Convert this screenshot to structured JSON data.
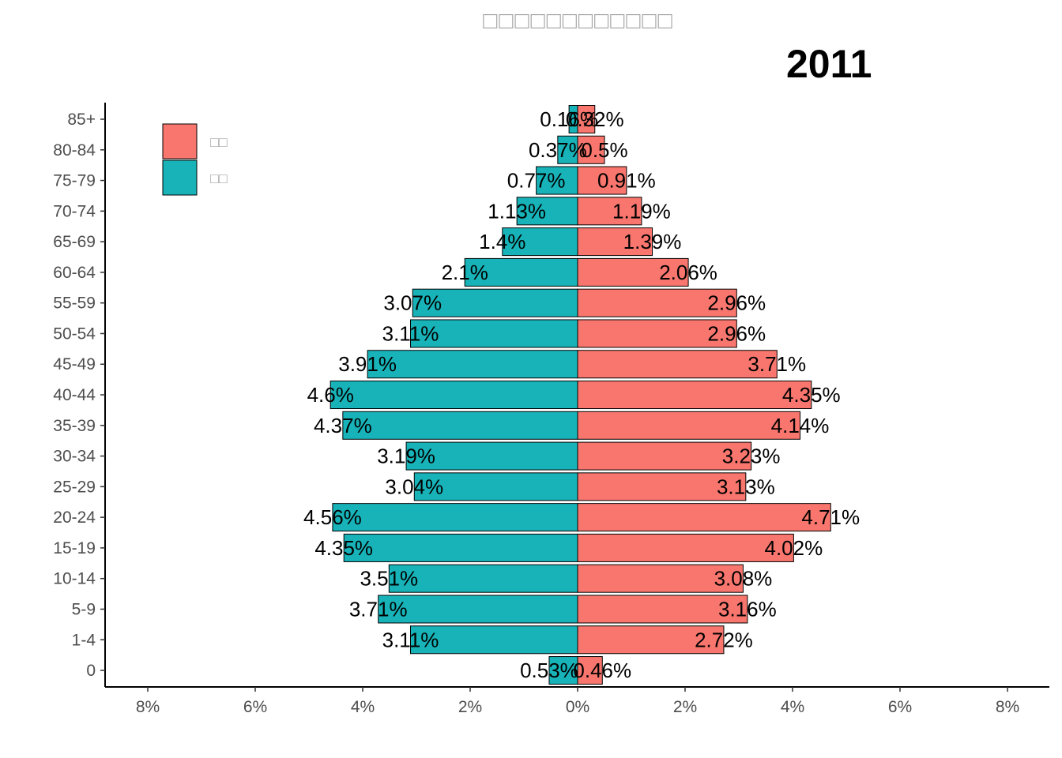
{
  "title": "□□□□□□□□□□□□",
  "year": "2011",
  "colors": {
    "female": "#F8766D",
    "male": "#17B3B8",
    "axis": "#000000",
    "tick_text": "#4d4d4d"
  },
  "chart_data": {
    "type": "bar",
    "orientation": "horizontal",
    "layout": "population-pyramid",
    "categories": [
      "85+",
      "80-84",
      "75-79",
      "70-74",
      "65-69",
      "60-64",
      "55-59",
      "50-54",
      "45-49",
      "40-44",
      "35-39",
      "30-34",
      "25-29",
      "20-24",
      "15-19",
      "10-14",
      "5-9",
      "1-4",
      "0"
    ],
    "series": [
      {
        "name": "□□",
        "side": "right",
        "color": "#F8766D",
        "values": [
          0.32,
          0.5,
          0.91,
          1.19,
          1.39,
          2.06,
          2.96,
          2.96,
          3.71,
          4.35,
          4.14,
          3.23,
          3.13,
          4.71,
          4.02,
          3.08,
          3.16,
          2.72,
          0.46
        ],
        "labels": [
          "0.32%",
          "0.5%",
          "0.91%",
          "1.19%",
          "1.39%",
          "2.06%",
          "2.96%",
          "2.96%",
          "3.71%",
          "4.35%",
          "4.14%",
          "3.23%",
          "3.13%",
          "4.71%",
          "4.02%",
          "3.08%",
          "3.16%",
          "2.72%",
          "0.46%"
        ]
      },
      {
        "name": "□□",
        "side": "left",
        "color": "#17B3B8",
        "values": [
          0.16,
          0.37,
          0.77,
          1.13,
          1.4,
          2.1,
          3.07,
          3.11,
          3.91,
          4.6,
          4.37,
          3.19,
          3.04,
          4.56,
          4.35,
          3.51,
          3.71,
          3.11,
          0.53
        ],
        "labels": [
          "0.16%",
          "0.37%",
          "0.77%",
          "1.13%",
          "1.4%",
          "2.1%",
          "3.07%",
          "3.11%",
          "3.91%",
          "4.6%",
          "4.37%",
          "3.19%",
          "3.04%",
          "4.56%",
          "4.35%",
          "3.51%",
          "3.71%",
          "3.11%",
          "0.53%"
        ]
      }
    ],
    "xlim": [
      -8,
      8
    ],
    "xticks": [
      -8,
      -6,
      -4,
      -2,
      0,
      2,
      4,
      6,
      8
    ],
    "xtick_labels": [
      "8%",
      "6%",
      "4%",
      "2%",
      "0%",
      "2%",
      "4%",
      "6%",
      "8%"
    ],
    "legend_position": "top-left",
    "grid": false
  }
}
